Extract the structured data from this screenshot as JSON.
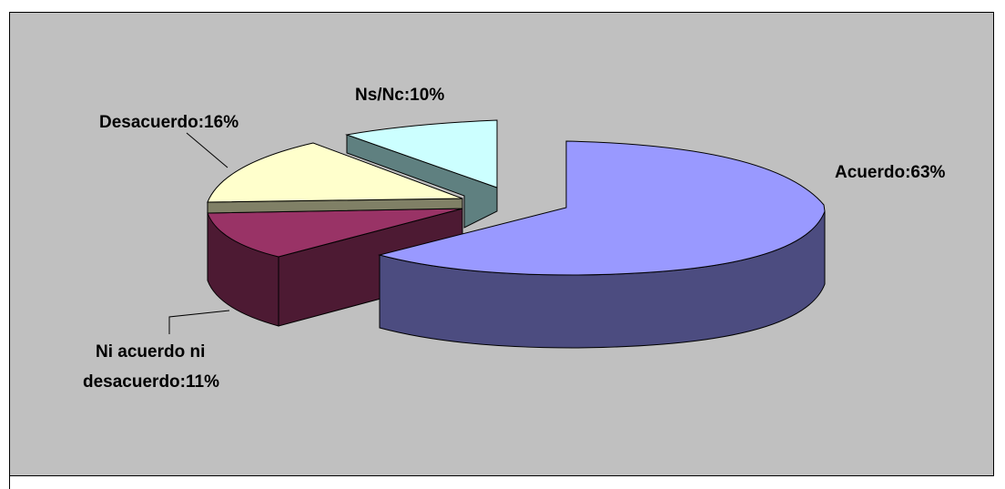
{
  "chart_data": {
    "type": "pie",
    "style": "3d-exploded",
    "slices": [
      {
        "name": "Acuerdo",
        "value": 63,
        "label": "Acuerdo:63%",
        "color": "#9999ff",
        "side_color": "#4c4c80"
      },
      {
        "name": "Ns/Nc",
        "value": 10,
        "label": "Ns/Nc:10%",
        "color": "#ccffff",
        "side_color": "#5f8080"
      },
      {
        "name": "Desacuerdo",
        "value": 16,
        "label": "Desacuerdo:16%",
        "color": "#ffffcc",
        "side_color": "#808066"
      },
      {
        "name": "Ni acuerdo ni desacuerdo",
        "value": 11,
        "label_lines": [
          "Ni acuerdo ni",
          "desacuerdo:11%"
        ],
        "color": "#993366",
        "side_color": "#4d1a33"
      }
    ],
    "background": "#c0c0c0",
    "legend": "none"
  }
}
